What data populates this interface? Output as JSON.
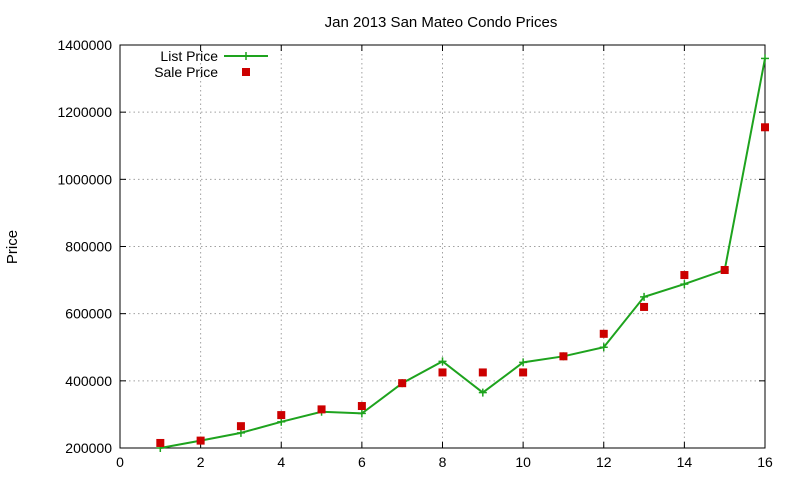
{
  "chart_data": {
    "type": "line",
    "title": "Jan 2013 San Mateo Condo Prices",
    "xlabel": "",
    "ylabel": "Price",
    "xlim": [
      0,
      16
    ],
    "ylim": [
      200000,
      1400000
    ],
    "xticks": [
      0,
      2,
      4,
      6,
      8,
      10,
      12,
      14,
      16
    ],
    "yticks": [
      200000,
      400000,
      600000,
      800000,
      1000000,
      1200000,
      1400000
    ],
    "grid": true,
    "legend_position": "top-left",
    "x": [
      1,
      2,
      3,
      4,
      5,
      6,
      7,
      8,
      9,
      10,
      11,
      12,
      13,
      14,
      15,
      16
    ],
    "series": [
      {
        "name": "List Price",
        "style": "line-points",
        "marker": "plus",
        "color": "#1ea31e",
        "values": [
          200000,
          222000,
          245000,
          278000,
          308000,
          303000,
          393000,
          458000,
          365000,
          455000,
          473000,
          500000,
          650000,
          688000,
          730000,
          1360000
        ]
      },
      {
        "name": "Sale Price",
        "style": "points",
        "marker": "square",
        "color": "#cc0000",
        "values": [
          215000,
          222000,
          265000,
          298000,
          315000,
          325000,
          393000,
          425000,
          425000,
          425000,
          473000,
          540000,
          620000,
          715000,
          730000,
          1155000
        ]
      }
    ]
  }
}
